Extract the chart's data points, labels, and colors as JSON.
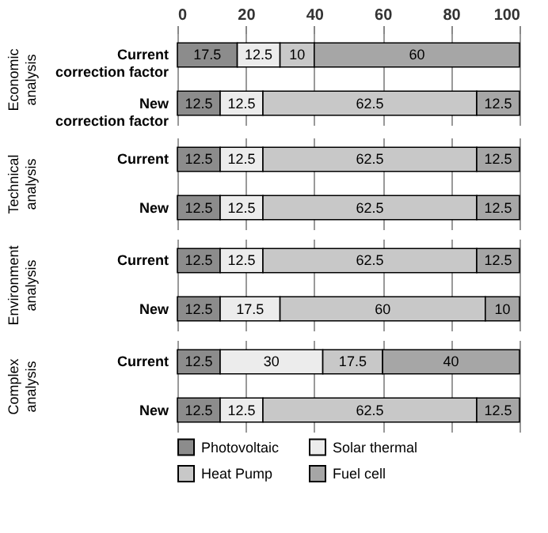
{
  "chart_data": [
    {
      "type": "bar",
      "orientation": "horizontal",
      "stacked": true,
      "ylabel": "Economic analysis",
      "categories": [
        "Current correction factor",
        "New correction factor"
      ],
      "series": [
        {
          "color": "#8c8c8c",
          "values": [
            17.5,
            12.5
          ]
        },
        {
          "color": "#ececec",
          "values": [
            12.5,
            12.5
          ]
        },
        {
          "color": "#c8c8c8",
          "values": [
            10,
            62.5
          ]
        },
        {
          "color": "#a6a6a6",
          "values": [
            60,
            12.5
          ]
        }
      ],
      "xlim": [
        0,
        100
      ],
      "xticks": [
        0,
        20,
        40,
        60,
        80,
        100
      ],
      "grid": "x",
      "data_labels": true,
      "legend": false
    },
    {
      "type": "bar",
      "orientation": "horizontal",
      "stacked": true,
      "ylabel": "Technical analysis",
      "categories": [
        "Current",
        "New"
      ],
      "series": [
        {
          "color": "#8c8c8c",
          "values": [
            12.5,
            12.5
          ]
        },
        {
          "color": "#ececec",
          "values": [
            12.5,
            12.5
          ]
        },
        {
          "color": "#c8c8c8",
          "values": [
            62.5,
            62.5
          ]
        },
        {
          "color": "#a6a6a6",
          "values": [
            12.5,
            12.5
          ]
        }
      ],
      "xlim": [
        0,
        100
      ],
      "xticks": [
        0,
        20,
        40,
        60,
        80,
        100
      ],
      "grid": "x",
      "data_labels": true,
      "legend": false,
      "tick_labels": "y"
    },
    {
      "type": "bar",
      "orientation": "horizontal",
      "stacked": true,
      "ylabel": "Environment analysis",
      "categories": [
        "Current",
        "New"
      ],
      "series": [
        {
          "color": "#8c8c8c",
          "values": [
            12.5,
            12.5
          ]
        },
        {
          "color": "#ececec",
          "values": [
            12.5,
            17.5
          ]
        },
        {
          "color": "#c8c8c8",
          "values": [
            62.5,
            60
          ]
        },
        {
          "color": "#a6a6a6",
          "values": [
            12.5,
            10
          ]
        }
      ],
      "xlim": [
        0,
        100
      ],
      "xticks": [
        0,
        20,
        40,
        60,
        80,
        100
      ],
      "grid": "x",
      "data_labels": true,
      "legend": false,
      "tick_labels": "y"
    },
    {
      "type": "bar",
      "orientation": "horizontal",
      "stacked": true,
      "ylabel": "Complex analysis",
      "categories": [
        "Current",
        "New"
      ],
      "series": [
        {
          "name": "Photovoltaic",
          "color": "#8c8c8c",
          "values": [
            12.5,
            12.5
          ]
        },
        {
          "name": "Solar thermal",
          "color": "#ececec",
          "values": [
            30,
            12.5
          ]
        },
        {
          "name": "Heat Pump",
          "color": "#c8c8c8",
          "values": [
            17.5,
            62.5
          ]
        },
        {
          "name": "Fuel cell",
          "color": "#a6a6a6",
          "values": [
            40,
            12.5
          ]
        }
      ],
      "xlim": [
        0,
        100
      ],
      "xticks": [
        0,
        20,
        40,
        60,
        80,
        100
      ],
      "grid": "x",
      "data_labels": true,
      "legend": "bottom",
      "tick_labels": "y"
    }
  ]
}
